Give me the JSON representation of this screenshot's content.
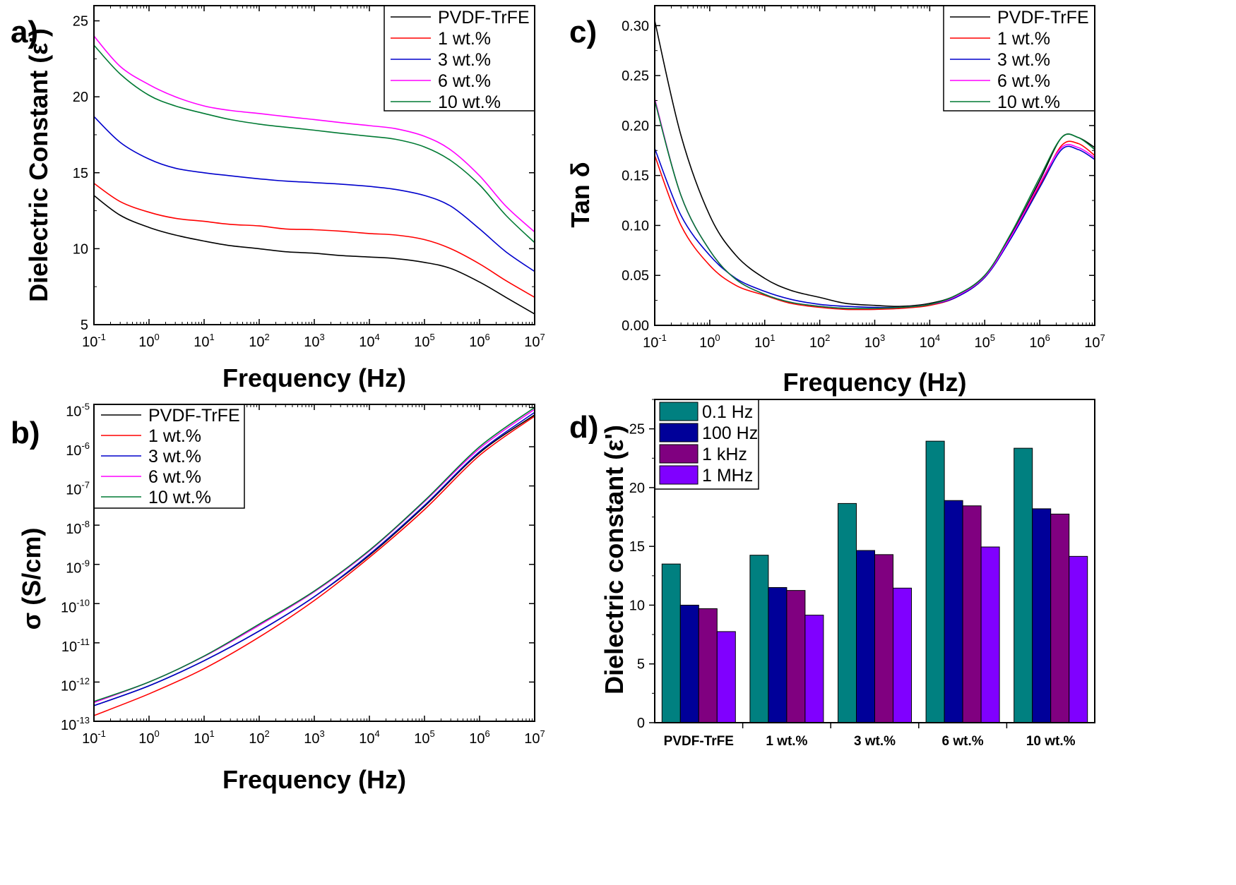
{
  "chart_data": [
    {
      "panel": "a)",
      "type": "line",
      "xlabel": "Frequency (Hz)",
      "ylabel": "Dielectric Constant (ε')",
      "xscale": "log",
      "xlim": [
        0.1,
        10000000
      ],
      "ylim": [
        5,
        26
      ],
      "xticks": [
        {
          "base": "10",
          "exp": "-1"
        },
        {
          "base": "10",
          "exp": "0"
        },
        {
          "base": "10",
          "exp": "1"
        },
        {
          "base": "10",
          "exp": "2"
        },
        {
          "base": "10",
          "exp": "3"
        },
        {
          "base": "10",
          "exp": "4"
        },
        {
          "base": "10",
          "exp": "5"
        },
        {
          "base": "10",
          "exp": "6"
        },
        {
          "base": "10",
          "exp": "7"
        }
      ],
      "yticks": [
        "5",
        "10",
        "15",
        "20",
        "25"
      ],
      "legend_position": "top-right",
      "series": [
        {
          "name": "PVDF-TrFE",
          "color": "#000000",
          "x": [
            0.1,
            0.3,
            1,
            3,
            10,
            30,
            100,
            300,
            1000,
            3000,
            10000,
            30000,
            100000,
            300000,
            1000000,
            3000000,
            10000000
          ],
          "y": [
            13.5,
            12.2,
            11.4,
            10.9,
            10.5,
            10.2,
            10.0,
            9.8,
            9.7,
            9.55,
            9.45,
            9.35,
            9.1,
            8.7,
            7.8,
            6.8,
            5.7
          ]
        },
        {
          "name": "1 wt.%",
          "color": "#ff0000",
          "x": [
            0.1,
            0.3,
            1,
            3,
            10,
            30,
            100,
            300,
            1000,
            3000,
            10000,
            30000,
            100000,
            300000,
            1000000,
            3000000,
            10000000
          ],
          "y": [
            14.3,
            13.1,
            12.4,
            12.0,
            11.8,
            11.6,
            11.5,
            11.3,
            11.25,
            11.15,
            11.0,
            10.9,
            10.6,
            10.0,
            9.0,
            7.9,
            6.8
          ]
        },
        {
          "name": "3 wt.%",
          "color": "#0000cc",
          "x": [
            0.1,
            0.3,
            1,
            3,
            10,
            30,
            100,
            300,
            1000,
            3000,
            10000,
            30000,
            100000,
            300000,
            1000000,
            3000000,
            10000000
          ],
          "y": [
            18.7,
            17.0,
            15.9,
            15.3,
            15.0,
            14.8,
            14.6,
            14.45,
            14.35,
            14.25,
            14.1,
            13.9,
            13.5,
            12.8,
            11.3,
            9.8,
            8.5
          ]
        },
        {
          "name": "6 wt.%",
          "color": "#ff00ff",
          "x": [
            0.1,
            0.3,
            1,
            3,
            10,
            30,
            100,
            300,
            1000,
            3000,
            10000,
            30000,
            100000,
            300000,
            1000000,
            3000000,
            10000000
          ],
          "y": [
            24.0,
            22.0,
            20.8,
            20.0,
            19.4,
            19.1,
            18.9,
            18.7,
            18.5,
            18.3,
            18.1,
            17.9,
            17.4,
            16.5,
            14.8,
            12.8,
            11.1
          ]
        },
        {
          "name": "10 wt.%",
          "color": "#007a33",
          "x": [
            0.1,
            0.3,
            1,
            3,
            10,
            30,
            100,
            300,
            1000,
            3000,
            10000,
            30000,
            100000,
            300000,
            1000000,
            3000000,
            10000000
          ],
          "y": [
            23.4,
            21.5,
            20.1,
            19.4,
            18.9,
            18.5,
            18.2,
            18.0,
            17.8,
            17.6,
            17.4,
            17.2,
            16.7,
            15.8,
            14.2,
            12.2,
            10.4
          ]
        }
      ]
    },
    {
      "panel": "b)",
      "type": "line",
      "xlabel": "Frequency (Hz)",
      "ylabel": "σ (S/cm)",
      "xscale": "log",
      "yscale": "log",
      "xlim": [
        0.1,
        10000000
      ],
      "ylim": [
        1e-13,
        1.2e-05
      ],
      "xticks": [
        {
          "base": "10",
          "exp": "-1"
        },
        {
          "base": "10",
          "exp": "0"
        },
        {
          "base": "10",
          "exp": "1"
        },
        {
          "base": "10",
          "exp": "2"
        },
        {
          "base": "10",
          "exp": "3"
        },
        {
          "base": "10",
          "exp": "4"
        },
        {
          "base": "10",
          "exp": "5"
        },
        {
          "base": "10",
          "exp": "6"
        },
        {
          "base": "10",
          "exp": "7"
        }
      ],
      "yticks": [
        {
          "base": "10",
          "exp": "-13"
        },
        {
          "base": "10",
          "exp": "-12"
        },
        {
          "base": "10",
          "exp": "-11"
        },
        {
          "base": "10",
          "exp": "-10"
        },
        {
          "base": "10",
          "exp": "-9"
        },
        {
          "base": "10",
          "exp": "-8"
        },
        {
          "base": "10",
          "exp": "-7"
        },
        {
          "base": "10",
          "exp": "-6"
        },
        {
          "base": "10",
          "exp": "-5"
        }
      ],
      "legend_position": "top-left",
      "series": [
        {
          "name": "PVDF-TrFE",
          "color": "#000000",
          "x": [
            0.1,
            1,
            10,
            100,
            1000,
            10000,
            100000,
            1000000,
            10000000
          ],
          "y": [
            2.5e-13,
            8e-13,
            3.5e-12,
            2e-11,
            1.5e-10,
            1.7e-09,
            3e-08,
            7e-07,
            6.5e-06
          ]
        },
        {
          "name": "1 wt.%",
          "color": "#ff0000",
          "x": [
            0.1,
            1,
            10,
            100,
            1000,
            10000,
            100000,
            1000000,
            10000000
          ],
          "y": [
            1.4e-13,
            5e-13,
            2.2e-12,
            1.4e-11,
            1.2e-10,
            1.5e-09,
            2.5e-08,
            6e-07,
            6e-06
          ]
        },
        {
          "name": "3 wt.%",
          "color": "#0000cc",
          "x": [
            0.1,
            1,
            10,
            100,
            1000,
            10000,
            100000,
            1000000,
            10000000
          ],
          "y": [
            2.5e-13,
            8e-13,
            3.5e-12,
            2e-11,
            1.5e-10,
            1.8e-09,
            3.2e-08,
            7.5e-07,
            7.5e-06
          ]
        },
        {
          "name": "6 wt.%",
          "color": "#ff00ff",
          "x": [
            0.1,
            1,
            10,
            100,
            1000,
            10000,
            100000,
            1000000,
            10000000
          ],
          "y": [
            3e-13,
            1e-12,
            4.5e-12,
            2.8e-11,
            2e-10,
            2.2e-09,
            4e-08,
            9e-07,
            9e-06
          ]
        },
        {
          "name": "10 wt.%",
          "color": "#007a33",
          "x": [
            0.1,
            1,
            10,
            100,
            1000,
            10000,
            100000,
            1000000,
            10000000
          ],
          "y": [
            3.2e-13,
            1e-12,
            4.6e-12,
            3e-11,
            2.1e-10,
            2.3e-09,
            4.2e-08,
            1e-06,
            1e-05
          ]
        }
      ]
    },
    {
      "panel": "c)",
      "type": "line",
      "xlabel": "Frequency (Hz)",
      "ylabel": "Tan δ",
      "xscale": "log",
      "xlim": [
        0.1,
        10000000
      ],
      "ylim": [
        0,
        0.32
      ],
      "xticks": [
        {
          "base": "10",
          "exp": "-1"
        },
        {
          "base": "10",
          "exp": "0"
        },
        {
          "base": "10",
          "exp": "1"
        },
        {
          "base": "10",
          "exp": "2"
        },
        {
          "base": "10",
          "exp": "3"
        },
        {
          "base": "10",
          "exp": "4"
        },
        {
          "base": "10",
          "exp": "5"
        },
        {
          "base": "10",
          "exp": "6"
        },
        {
          "base": "10",
          "exp": "7"
        }
      ],
      "yticks": [
        "0.00",
        "0.05",
        "0.10",
        "0.15",
        "0.20",
        "0.25",
        "0.30"
      ],
      "legend_position": "top-right",
      "series": [
        {
          "name": "PVDF-TrFE",
          "color": "#000000",
          "x": [
            0.1,
            0.3,
            1,
            3,
            10,
            30,
            100,
            300,
            1000,
            3000,
            10000,
            30000,
            100000,
            300000,
            1000000,
            2500000,
            5000000,
            10000000
          ],
          "y": [
            0.305,
            0.19,
            0.11,
            0.07,
            0.047,
            0.035,
            0.028,
            0.022,
            0.02,
            0.019,
            0.022,
            0.03,
            0.05,
            0.09,
            0.145,
            0.188,
            0.188,
            0.178
          ]
        },
        {
          "name": "1 wt.%",
          "color": "#ff0000",
          "x": [
            0.1,
            0.3,
            1,
            3,
            10,
            30,
            100,
            300,
            1000,
            3000,
            10000,
            30000,
            100000,
            300000,
            1000000,
            2500000,
            5000000,
            10000000
          ],
          "y": [
            0.17,
            0.1,
            0.06,
            0.04,
            0.03,
            0.022,
            0.018,
            0.016,
            0.016,
            0.017,
            0.02,
            0.028,
            0.048,
            0.088,
            0.14,
            0.18,
            0.182,
            0.17
          ]
        },
        {
          "name": "3 wt.%",
          "color": "#0000cc",
          "x": [
            0.1,
            0.3,
            1,
            3,
            10,
            30,
            100,
            300,
            1000,
            3000,
            10000,
            30000,
            100000,
            300000,
            1000000,
            2500000,
            5000000,
            10000000
          ],
          "y": [
            0.177,
            0.11,
            0.07,
            0.047,
            0.034,
            0.026,
            0.021,
            0.019,
            0.018,
            0.018,
            0.021,
            0.028,
            0.048,
            0.087,
            0.138,
            0.176,
            0.176,
            0.166
          ]
        },
        {
          "name": "6 wt.%",
          "color": "#ff00ff",
          "x": [
            0.1,
            0.3,
            1,
            3,
            10,
            30,
            100,
            300,
            1000,
            3000,
            10000,
            30000,
            100000,
            300000,
            1000000,
            2500000,
            5000000,
            10000000
          ],
          "y": [
            0.227,
            0.13,
            0.075,
            0.046,
            0.031,
            0.023,
            0.019,
            0.017,
            0.017,
            0.018,
            0.021,
            0.029,
            0.049,
            0.089,
            0.142,
            0.178,
            0.178,
            0.168
          ]
        },
        {
          "name": "10 wt.%",
          "color": "#007a33",
          "x": [
            0.1,
            0.3,
            1,
            3,
            10,
            30,
            100,
            300,
            1000,
            3000,
            10000,
            30000,
            100000,
            300000,
            1000000,
            2500000,
            5000000,
            10000000
          ],
          "y": [
            0.225,
            0.13,
            0.075,
            0.046,
            0.031,
            0.023,
            0.019,
            0.017,
            0.017,
            0.018,
            0.021,
            0.03,
            0.05,
            0.092,
            0.148,
            0.188,
            0.188,
            0.176
          ]
        }
      ]
    },
    {
      "panel": "d)",
      "type": "bar",
      "xlabel": "",
      "ylabel": "Dielectric constant (ε')",
      "ylim": [
        0,
        27.5
      ],
      "yticks": [
        "0",
        "5",
        "10",
        "15",
        "20",
        "25"
      ],
      "categories": [
        "PVDF-TrFE",
        "1 wt.%",
        "3 wt.%",
        "6 wt.%",
        "10 wt.%"
      ],
      "legend_position": "top-left",
      "series": [
        {
          "name": "0.1 Hz",
          "color": "#008080",
          "values": [
            13.5,
            14.25,
            18.65,
            23.95,
            23.35
          ]
        },
        {
          "name": "100 Hz",
          "color": "#000099",
          "values": [
            10.0,
            11.5,
            14.65,
            18.9,
            18.2
          ]
        },
        {
          "name": "1 kHz",
          "color": "#800080",
          "values": [
            9.7,
            11.25,
            14.3,
            18.45,
            17.75
          ]
        },
        {
          "name": "1 MHz",
          "color": "#8000ff",
          "values": [
            7.75,
            9.15,
            11.45,
            14.95,
            14.15
          ]
        }
      ]
    }
  ]
}
